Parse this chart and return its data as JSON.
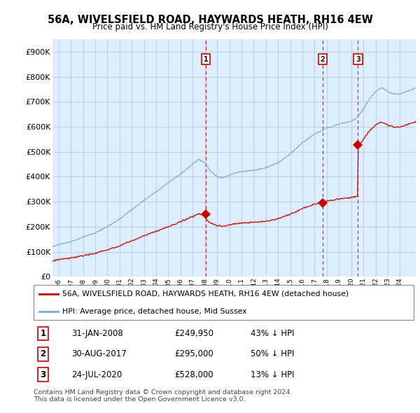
{
  "title": "56A, WIVELSFIELD ROAD, HAYWARDS HEATH, RH16 4EW",
  "subtitle": "Price paid vs. HM Land Registry's House Price Index (HPI)",
  "ytick_values": [
    0,
    100000,
    200000,
    300000,
    400000,
    500000,
    600000,
    700000,
    800000,
    900000
  ],
  "ylim": [
    0,
    950000
  ],
  "xlim_start": 1995.5,
  "xlim_end": 2025.3,
  "sale_dates": [
    2008.08,
    2017.66,
    2020.56
  ],
  "sale_prices": [
    249950,
    295000,
    528000
  ],
  "sale_labels": [
    "1",
    "2",
    "3"
  ],
  "legend_red": "56A, WIVELSFIELD ROAD, HAYWARDS HEATH, RH16 4EW (detached house)",
  "legend_blue": "HPI: Average price, detached house, Mid Sussex",
  "table": [
    {
      "num": "1",
      "date": "31-JAN-2008",
      "price": "£249,950",
      "hpi": "43% ↓ HPI"
    },
    {
      "num": "2",
      "date": "30-AUG-2017",
      "price": "£295,000",
      "hpi": "50% ↓ HPI"
    },
    {
      "num": "3",
      "date": "24-JUL-2020",
      "price": "£528,000",
      "hpi": "13% ↓ HPI"
    }
  ],
  "footer": "Contains HM Land Registry data © Crown copyright and database right 2024.\nThis data is licensed under the Open Government Licence v3.0.",
  "red_color": "#cc0000",
  "blue_color": "#7aadd4",
  "chart_bg": "#ddeeff",
  "vline_color": "#cc0000",
  "grid_color": "#bbccdd",
  "background_color": "#ffffff",
  "hpi_seed": 1234,
  "red_seed": 5678
}
